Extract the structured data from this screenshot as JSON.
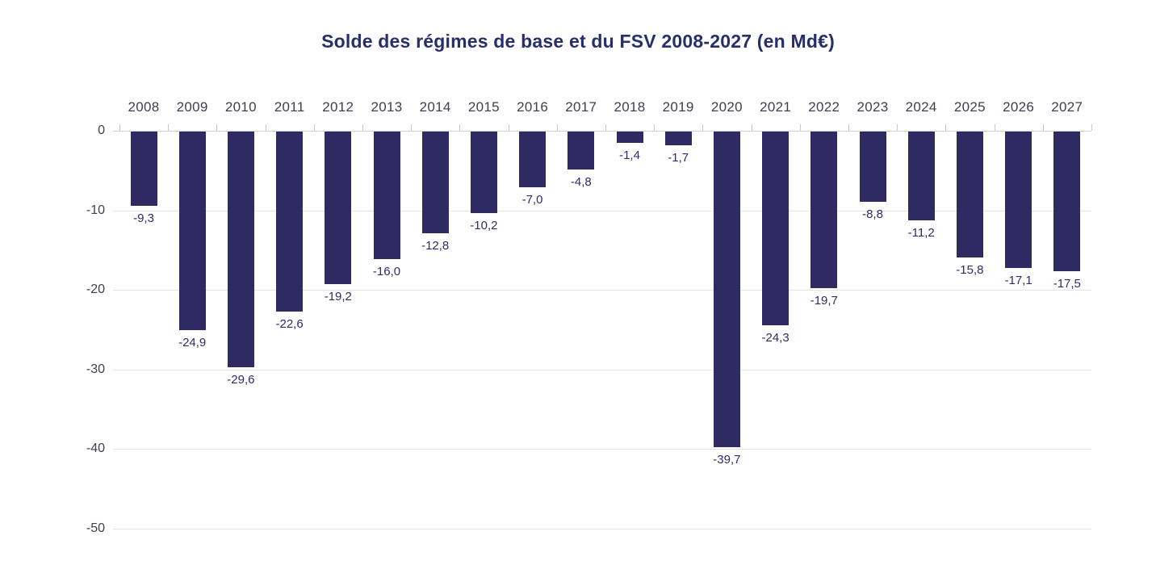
{
  "chart_data": {
    "type": "bar",
    "title": "Solde des régimes de base et du FSV 2008-2027 (en Md€)",
    "categories": [
      "2008",
      "2009",
      "2010",
      "2011",
      "2012",
      "2013",
      "2014",
      "2015",
      "2016",
      "2017",
      "2018",
      "2019",
      "2020",
      "2021",
      "2022",
      "2023",
      "2024",
      "2025",
      "2026",
      "2027"
    ],
    "values": [
      -9.3,
      -24.9,
      -29.6,
      -22.6,
      -19.2,
      -16.0,
      -12.8,
      -10.2,
      -7.0,
      -4.8,
      -1.4,
      -1.7,
      -39.7,
      -24.3,
      -19.7,
      -8.8,
      -11.2,
      -15.8,
      -17.1,
      -17.5
    ],
    "value_labels": [
      "-9,3",
      "-24,9",
      "-29,6",
      "-22,6",
      "-19,2",
      "-16,0",
      "-12,8",
      "-10,2",
      "-7,0",
      "-4,8",
      "-1,4",
      "-1,7",
      "-39,7",
      "-24,3",
      "-19,7",
      "-8,8",
      "-11,2",
      "-15,8",
      "-17,1",
      "-17,5"
    ],
    "xlabel": "",
    "ylabel": "",
    "ylim": [
      -50,
      0
    ],
    "yticks": [
      0,
      -10,
      -20,
      -30,
      -40,
      -50
    ],
    "ytick_labels": [
      "0",
      "-10",
      "-20",
      "-30",
      "-40",
      "-50"
    ],
    "grid": true,
    "legend": "none",
    "x_axis_position": "top",
    "colors": {
      "bar": "#302a63",
      "title": "#262f6b",
      "axis_label": "#3e3e52",
      "value_label": "#2e2c67",
      "gridline": "#e3e3e3",
      "zero_line": "#cfcfcf",
      "tick": "#c9c9c9",
      "background": "#ffffff"
    }
  }
}
